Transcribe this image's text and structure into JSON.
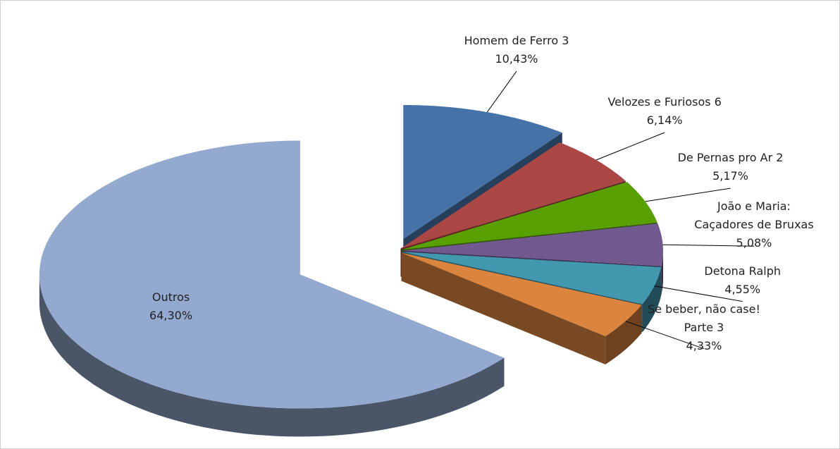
{
  "chart_data": {
    "type": "pie",
    "categories": [
      "Homem de Ferro 3",
      "Velozes e Furiosos 6",
      "De Pernas pro Ar 2",
      "João e Maria: Caçadores de Bruxas",
      "Detona Ralph",
      "Se beber, não case! Parte 3",
      "Outros"
    ],
    "values": [
      10.43,
      6.14,
      5.17,
      5.08,
      4.55,
      4.33,
      64.3
    ],
    "value_labels": [
      "10,43%",
      "6,14%",
      "5,17%",
      "5,08%",
      "4,55%",
      "4,33%",
      "64,30%"
    ],
    "colors": [
      "#4572a7",
      "#aa4643",
      "#58a000",
      "#71588f",
      "#4198af",
      "#db843d",
      "#93a9cf"
    ]
  }
}
